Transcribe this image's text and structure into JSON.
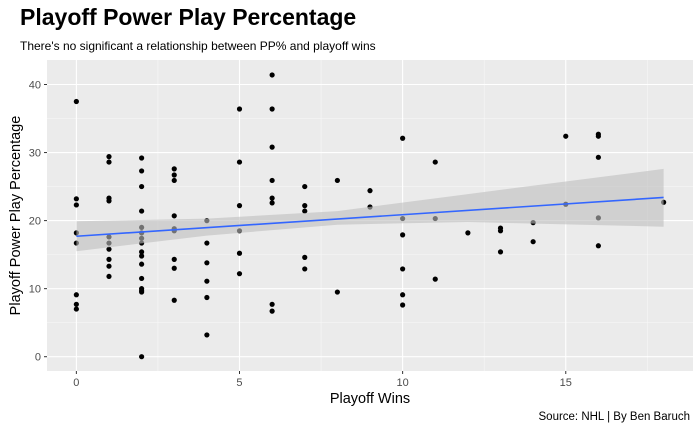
{
  "title": "Playoff Power Play Percentage",
  "subtitle": "There's no significant a relationship between PP% and playoff wins",
  "caption": "Source: NHL | By Ben Baruch",
  "colors": {
    "panel_background": "#ebebeb",
    "grid_major": "#ffffff",
    "points": "#000000",
    "trend_line": "#3366ff",
    "confidence_band": "#bebebe"
  },
  "chart_data": {
    "type": "scatter",
    "title": "Playoff Power Play Percentage",
    "subtitle": "There's no significant a relationship between PP% and playoff wins",
    "xlabel": "Playoff Wins",
    "ylabel": "Playoff Power Play Percentage",
    "xlim": [
      -0.9,
      18.9
    ],
    "ylim": [
      -2.1,
      43.6
    ],
    "x_ticks": [
      0,
      5,
      10,
      15
    ],
    "y_ticks": [
      0,
      10,
      20,
      30,
      40
    ],
    "grid": true,
    "legend": "none",
    "points": [
      {
        "x": 0,
        "y": 37.5
      },
      {
        "x": 0,
        "y": 23.2
      },
      {
        "x": 0,
        "y": 22.3
      },
      {
        "x": 0,
        "y": 18.2
      },
      {
        "x": 0,
        "y": 16.7
      },
      {
        "x": 0,
        "y": 9.1
      },
      {
        "x": 0,
        "y": 7.7
      },
      {
        "x": 0,
        "y": 7.0
      },
      {
        "x": 1,
        "y": 29.4
      },
      {
        "x": 1,
        "y": 28.6
      },
      {
        "x": 1,
        "y": 23.3
      },
      {
        "x": 1,
        "y": 22.9
      },
      {
        "x": 1,
        "y": 17.6
      },
      {
        "x": 1,
        "y": 16.7
      },
      {
        "x": 1,
        "y": 15.8
      },
      {
        "x": 1,
        "y": 14.3
      },
      {
        "x": 1,
        "y": 13.3
      },
      {
        "x": 1,
        "y": 11.8
      },
      {
        "x": 2,
        "y": 29.2
      },
      {
        "x": 2,
        "y": 27.3
      },
      {
        "x": 2,
        "y": 25.0
      },
      {
        "x": 2,
        "y": 21.4
      },
      {
        "x": 2,
        "y": 19.0
      },
      {
        "x": 2,
        "y": 18.2
      },
      {
        "x": 2,
        "y": 17.4
      },
      {
        "x": 2,
        "y": 16.7
      },
      {
        "x": 2,
        "y": 15.4
      },
      {
        "x": 2,
        "y": 14.8
      },
      {
        "x": 2,
        "y": 13.6
      },
      {
        "x": 2,
        "y": 11.5
      },
      {
        "x": 2,
        "y": 10.0
      },
      {
        "x": 2,
        "y": 9.7
      },
      {
        "x": 2,
        "y": 9.5
      },
      {
        "x": 2,
        "y": 0.0
      },
      {
        "x": 3,
        "y": 27.6
      },
      {
        "x": 3,
        "y": 26.7
      },
      {
        "x": 3,
        "y": 25.9
      },
      {
        "x": 3,
        "y": 20.7
      },
      {
        "x": 3,
        "y": 18.8
      },
      {
        "x": 3,
        "y": 18.5
      },
      {
        "x": 3,
        "y": 14.3
      },
      {
        "x": 3,
        "y": 13.0
      },
      {
        "x": 3,
        "y": 8.3
      },
      {
        "x": 4,
        "y": 20.0
      },
      {
        "x": 4,
        "y": 16.7
      },
      {
        "x": 4,
        "y": 13.8
      },
      {
        "x": 4,
        "y": 11.1
      },
      {
        "x": 4,
        "y": 8.7
      },
      {
        "x": 4,
        "y": 3.2
      },
      {
        "x": 5,
        "y": 36.4
      },
      {
        "x": 5,
        "y": 28.6
      },
      {
        "x": 5,
        "y": 22.2
      },
      {
        "x": 5,
        "y": 18.5
      },
      {
        "x": 5,
        "y": 15.2
      },
      {
        "x": 5,
        "y": 12.2
      },
      {
        "x": 6,
        "y": 41.4
      },
      {
        "x": 6,
        "y": 36.4
      },
      {
        "x": 6,
        "y": 30.8
      },
      {
        "x": 6,
        "y": 25.9
      },
      {
        "x": 6,
        "y": 23.3
      },
      {
        "x": 6,
        "y": 22.6
      },
      {
        "x": 6,
        "y": 7.7
      },
      {
        "x": 6,
        "y": 6.7
      },
      {
        "x": 7,
        "y": 25.0
      },
      {
        "x": 7,
        "y": 22.2
      },
      {
        "x": 7,
        "y": 21.4
      },
      {
        "x": 7,
        "y": 14.6
      },
      {
        "x": 7,
        "y": 12.9
      },
      {
        "x": 8,
        "y": 25.9
      },
      {
        "x": 8,
        "y": 9.5
      },
      {
        "x": 9,
        "y": 24.4
      },
      {
        "x": 9,
        "y": 22.0
      },
      {
        "x": 10,
        "y": 32.1
      },
      {
        "x": 10,
        "y": 20.3
      },
      {
        "x": 10,
        "y": 17.9
      },
      {
        "x": 10,
        "y": 12.9
      },
      {
        "x": 10,
        "y": 9.1
      },
      {
        "x": 10,
        "y": 7.6
      },
      {
        "x": 11,
        "y": 28.6
      },
      {
        "x": 11,
        "y": 20.3
      },
      {
        "x": 11,
        "y": 11.4
      },
      {
        "x": 12,
        "y": 18.2
      },
      {
        "x": 13,
        "y": 18.9
      },
      {
        "x": 13,
        "y": 18.5
      },
      {
        "x": 13,
        "y": 15.4
      },
      {
        "x": 14,
        "y": 19.7
      },
      {
        "x": 14,
        "y": 16.9
      },
      {
        "x": 15,
        "y": 32.4
      },
      {
        "x": 15,
        "y": 22.4
      },
      {
        "x": 16,
        "y": 32.7
      },
      {
        "x": 16,
        "y": 32.4
      },
      {
        "x": 16,
        "y": 29.3
      },
      {
        "x": 16,
        "y": 20.4
      },
      {
        "x": 16,
        "y": 16.3
      },
      {
        "x": 18,
        "y": 22.7
      }
    ],
    "trend": {
      "method": "linear",
      "start": {
        "x": 0,
        "y": 17.7
      },
      "end": {
        "x": 18,
        "y": 23.4
      },
      "band_lower": [
        {
          "x": 0,
          "y": 15.5
        },
        {
          "x": 4,
          "y": 17.8
        },
        {
          "x": 8,
          "y": 19.4
        },
        {
          "x": 12,
          "y": 19.8
        },
        {
          "x": 18,
          "y": 19.1
        }
      ],
      "band_upper": [
        {
          "x": 0,
          "y": 19.9
        },
        {
          "x": 4,
          "y": 20.3
        },
        {
          "x": 8,
          "y": 21.4
        },
        {
          "x": 12,
          "y": 23.9
        },
        {
          "x": 18,
          "y": 27.6
        }
      ]
    }
  }
}
